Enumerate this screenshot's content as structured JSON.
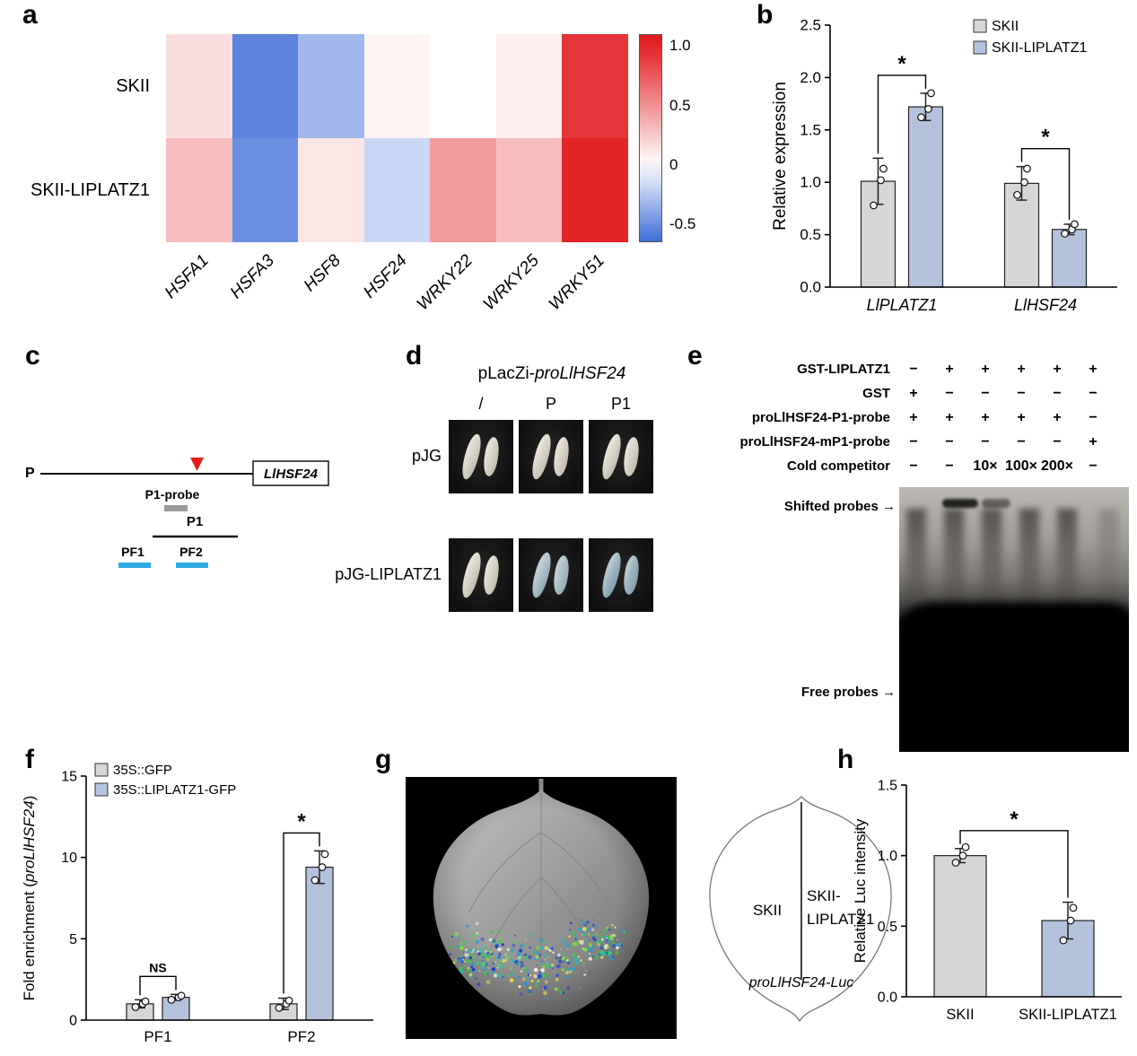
{
  "panels": {
    "a": {
      "label": "a"
    },
    "b": {
      "label": "b"
    },
    "c": {
      "label": "c",
      "promoter_label": "P",
      "gene_label": "LlHSF24",
      "probe_label": "P1-probe",
      "p1_label": "P1",
      "pf1_label": "PF1",
      "pf2_label": "PF2"
    },
    "d": {
      "label": "d",
      "title_prefix": "pLacZi-",
      "title_italic": "proLlHSF24",
      "col_headers": [
        "/",
        "P",
        "P1"
      ],
      "row_labels": [
        "pJG",
        "pJG-LIPLATZ1"
      ]
    },
    "e": {
      "label": "e",
      "rows": [
        {
          "label": "GST-LIPLATZ1",
          "values": [
            "−",
            "+",
            "+",
            "+",
            "+",
            "+"
          ]
        },
        {
          "label": "GST",
          "values": [
            "+",
            "−",
            "−",
            "−",
            "−",
            "−"
          ]
        },
        {
          "label": "proLlHSF24-P1-probe",
          "values": [
            "+",
            "+",
            "+",
            "+",
            "+",
            "−"
          ]
        },
        {
          "label": "proLlHSF24-mP1-probe",
          "values": [
            "−",
            "−",
            "−",
            "−",
            "−",
            "+"
          ]
        },
        {
          "label": "Cold competitor",
          "values": [
            "−",
            "−",
            "10×",
            "100×",
            "200×",
            "−"
          ]
        }
      ],
      "shifted_label": "Shifted probes",
      "free_label": "Free probes",
      "arrow": "→"
    },
    "f": {
      "label": "f"
    },
    "g": {
      "label": "g",
      "left_label": "SKII",
      "right_label_line1": "SKII-",
      "right_label_line2": "LIPLATZ1",
      "construct_label": "proLlHSF24-Luc"
    },
    "h": {
      "label": "h"
    }
  },
  "chart_data": [
    {
      "id": "heatmap-a",
      "type": "heatmap",
      "rows": [
        "SKII",
        "SKII-LIPLATZ1"
      ],
      "columns": [
        "HSFA1",
        "HSFA3",
        "HSF8",
        "HSF24",
        "WRKY22",
        "WRKY25",
        "WRKY51"
      ],
      "values": [
        [
          0.15,
          -0.55,
          -0.32,
          0.05,
          0.0,
          0.08,
          0.92
        ],
        [
          0.3,
          -0.5,
          0.12,
          -0.18,
          0.45,
          0.3,
          1.0
        ]
      ],
      "vmin": -0.65,
      "vmax": 1.1,
      "colorbar_ticks": [
        1.0,
        0.5,
        0,
        -0.5
      ],
      "colorbar_tick_labels": [
        "1.0",
        "0.5",
        "0",
        "-0.5"
      ]
    },
    {
      "id": "bar-b",
      "type": "bar",
      "categories": [
        "LlPLATZ1",
        "LlHSF24"
      ],
      "categories_italic": true,
      "series": [
        {
          "name": "SKII",
          "color": "#d6d6d6",
          "values": [
            1.01,
            0.99
          ],
          "errors": [
            0.22,
            0.16
          ],
          "points": [
            [
              0.78,
              1.02,
              1.13
            ],
            [
              0.88,
              1.0,
              1.13
            ]
          ]
        },
        {
          "name": "SKII-LIPLATZ1",
          "color": "#b5c2de",
          "values": [
            1.72,
            0.55
          ],
          "errors": [
            0.13,
            0.05
          ],
          "points": [
            [
              1.62,
              1.7,
              1.85
            ],
            [
              0.51,
              0.55,
              0.6
            ]
          ]
        }
      ],
      "ylabel": [
        {
          "text": "Relative expression"
        }
      ],
      "ylim": [
        0,
        2.5
      ],
      "yticks": [
        0,
        0.5,
        1,
        1.5,
        2,
        2.5
      ],
      "ytick_labels": [
        "0.0",
        "0.5",
        "1.0",
        "1.5",
        "2.0",
        "2.5"
      ],
      "sig": [
        {
          "group": 0,
          "label": "*"
        },
        {
          "group": 1,
          "label": "*"
        }
      ],
      "legend_position": "top-right",
      "grid": false
    },
    {
      "id": "bar-f",
      "type": "bar",
      "categories": [
        "PF1",
        "PF2"
      ],
      "categories_italic": false,
      "series": [
        {
          "name": "35S::GFP",
          "color": "#d6d6d6",
          "values": [
            1.0,
            1.0
          ],
          "errors": [
            0.25,
            0.35
          ],
          "points": [
            [
              0.8,
              1.0,
              1.15
            ],
            [
              0.75,
              1.0,
              1.2
            ]
          ]
        },
        {
          "name": "35S::LIPLATZ1-GFP",
          "color": "#b5c2de",
          "values": [
            1.4,
            9.4
          ],
          "errors": [
            0.18,
            1.0
          ],
          "points": [
            [
              1.25,
              1.4,
              1.5
            ],
            [
              8.6,
              9.4,
              10.2
            ]
          ]
        }
      ],
      "ylabel": [
        {
          "text": "Fold enrichment ("
        },
        {
          "text": "proLlHSF24",
          "italic": true
        },
        {
          "text": ")"
        }
      ],
      "ylim": [
        0,
        15
      ],
      "yticks": [
        0,
        5,
        10,
        15
      ],
      "ytick_labels": [
        "0",
        "5",
        "10",
        "15"
      ],
      "sig": [
        {
          "group": 0,
          "label": "NS"
        },
        {
          "group": 1,
          "label": "*"
        }
      ],
      "legend_position": "top-left",
      "grid": false
    },
    {
      "id": "bar-h",
      "type": "bar",
      "categories": [
        "SKII",
        "SKII-LIPLATZ1"
      ],
      "categories_italic": false,
      "series": [
        {
          "name": "",
          "colors": [
            "#d6d6d6",
            "#b5c2de"
          ],
          "values": [
            1.0,
            0.54
          ],
          "errors": [
            0.05,
            0.13
          ],
          "points": [
            [
              0.95,
              1.0,
              1.06
            ],
            [
              0.4,
              0.54,
              0.63
            ]
          ]
        }
      ],
      "ylabel": [
        {
          "text": "Relative Luc intensity"
        }
      ],
      "ylim": [
        0,
        1.5
      ],
      "yticks": [
        0,
        0.5,
        1,
        1.5
      ],
      "ytick_labels": [
        "0.0",
        "0.5",
        "1.0",
        "1.5"
      ],
      "sig": [
        {
          "label": "*"
        }
      ],
      "grid": false
    }
  ]
}
